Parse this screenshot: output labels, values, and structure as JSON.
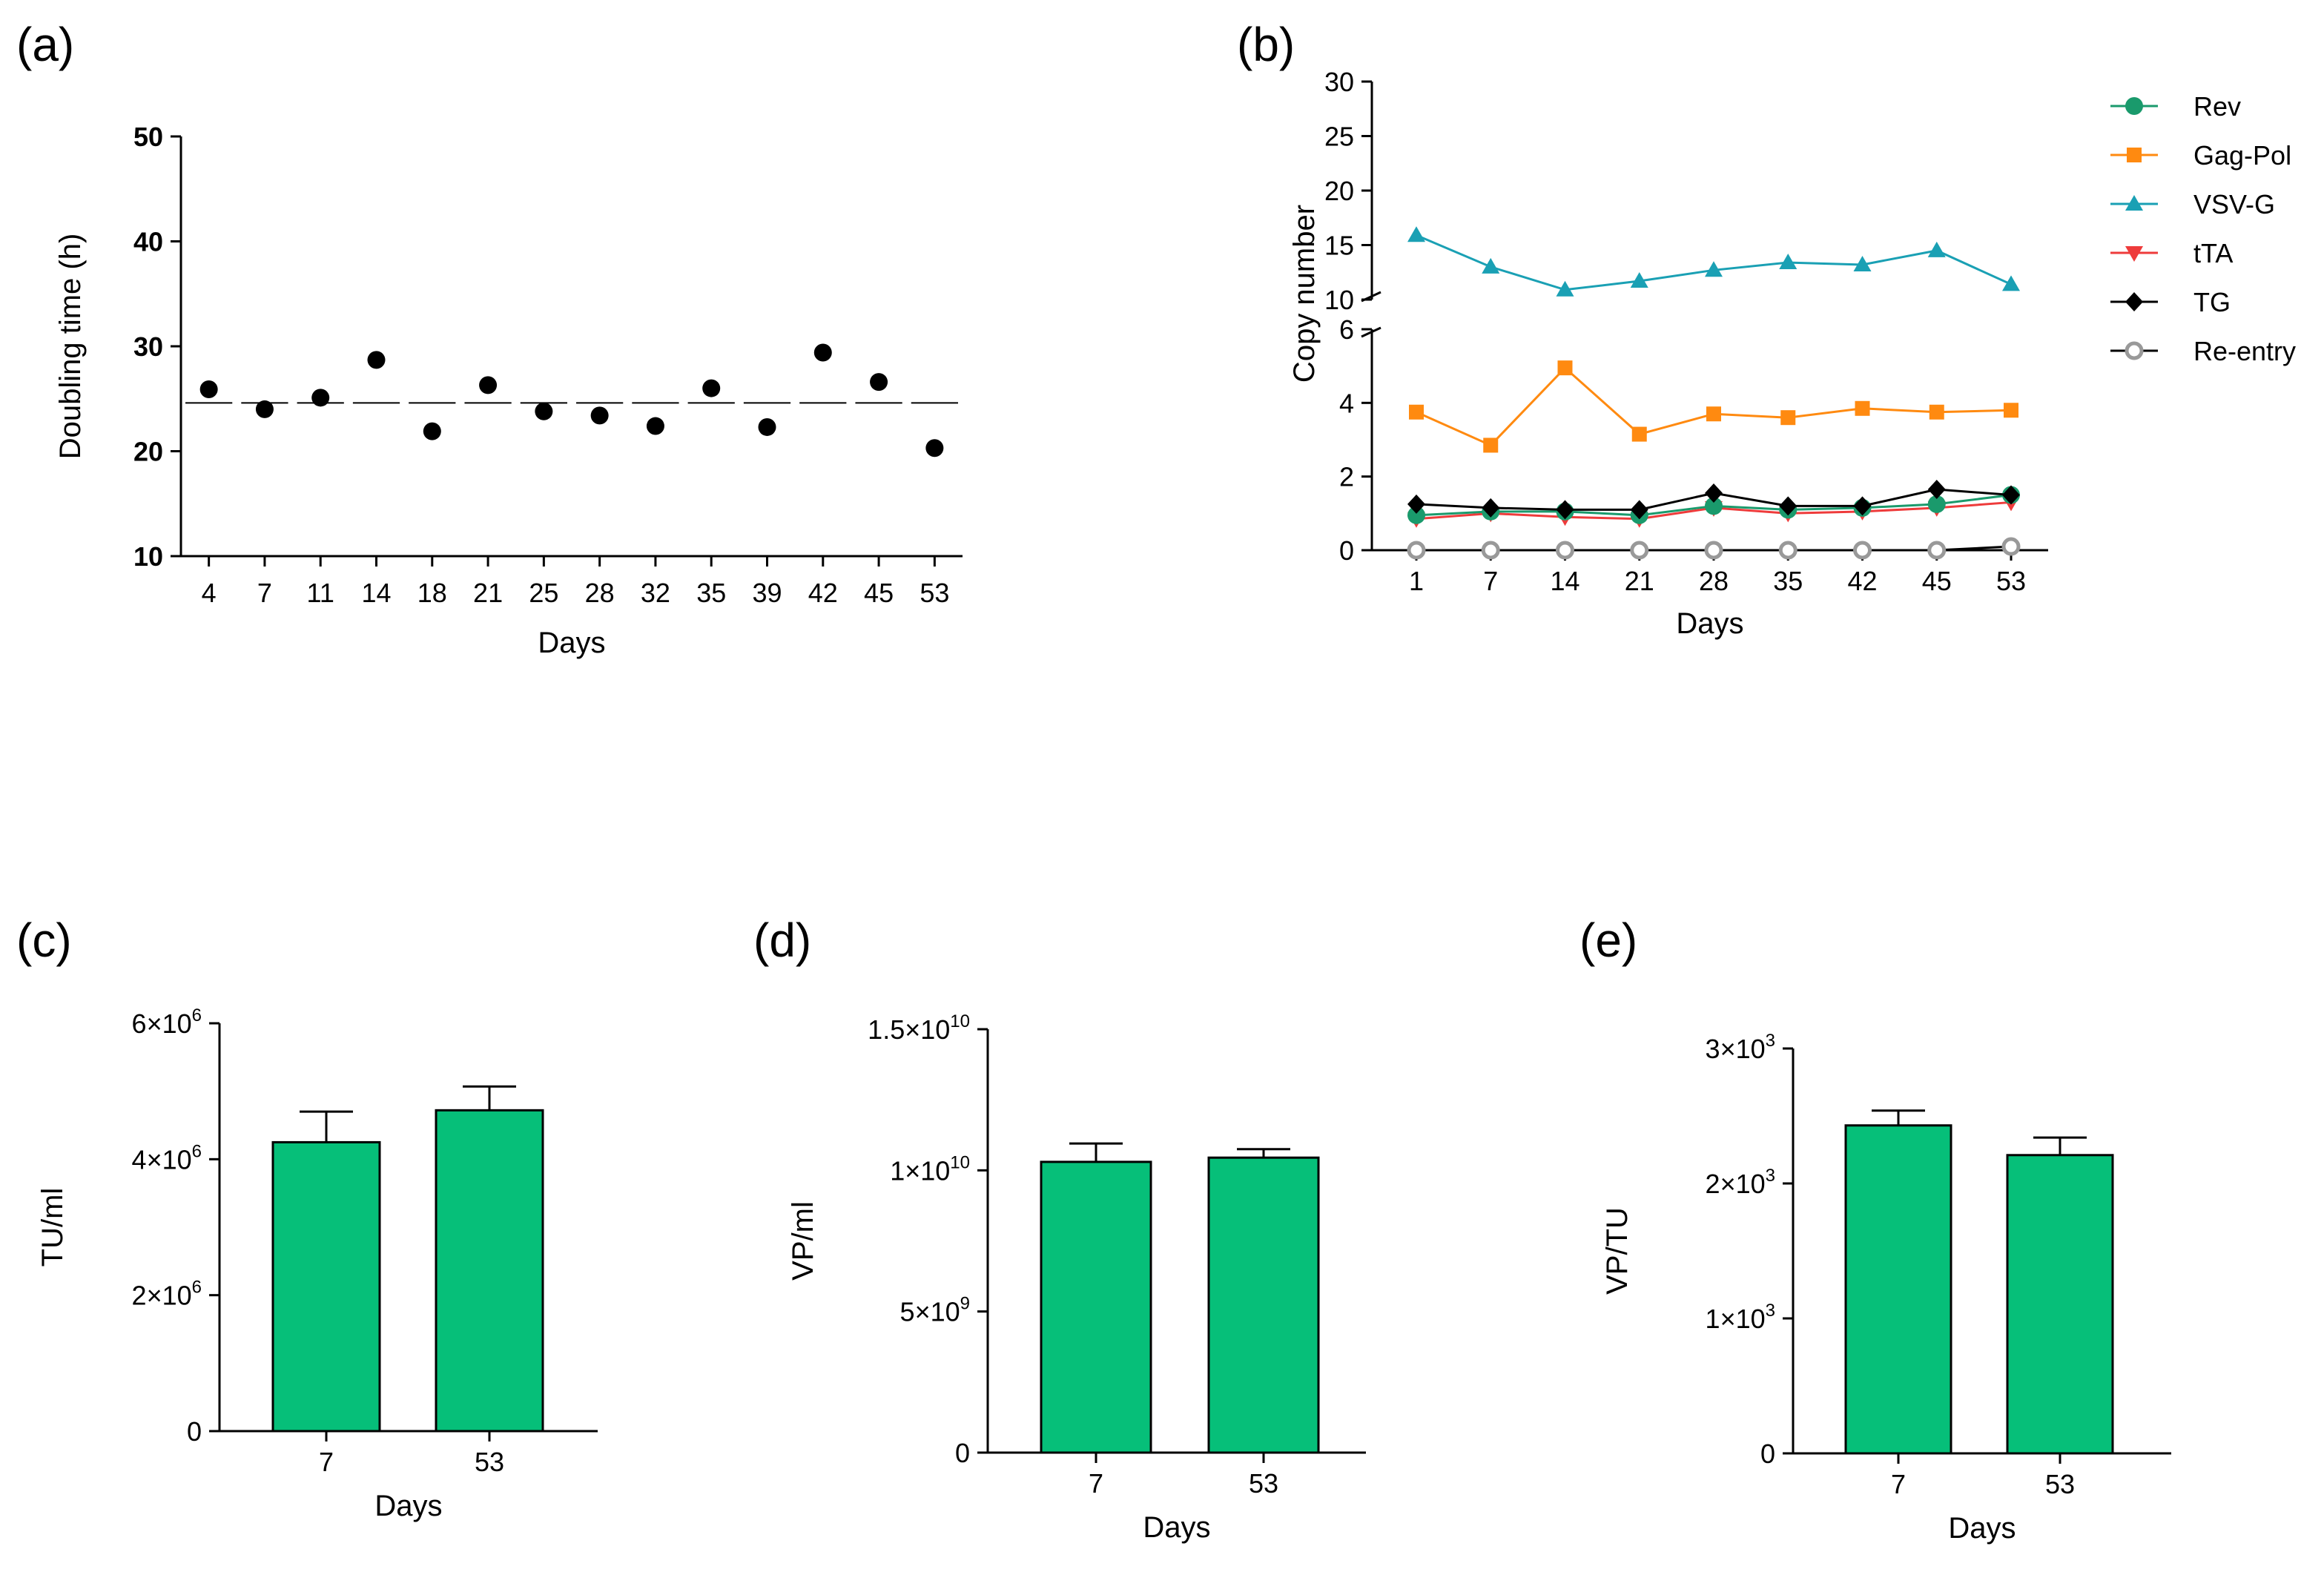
{
  "chart_data": [
    {
      "id": "a",
      "type": "scatter",
      "panel_label": "(a)",
      "title": "",
      "xlabel": "Days",
      "ylabel": "Doubling time (h)",
      "categories": [
        "4",
        "7",
        "11",
        "14",
        "18",
        "21",
        "25",
        "28",
        "32",
        "35",
        "39",
        "42",
        "45",
        "53"
      ],
      "values": [
        25.9,
        24.0,
        25.1,
        28.7,
        21.9,
        26.3,
        23.8,
        23.4,
        22.4,
        26.0,
        22.3,
        29.4,
        26.6,
        20.3
      ],
      "mean_line": 24.6,
      "ylim": [
        10,
        50
      ],
      "yticks": [
        "10",
        "20",
        "30",
        "40",
        "50"
      ],
      "point_color": "#000000"
    },
    {
      "id": "b",
      "type": "line",
      "panel_label": "(b)",
      "title": "",
      "xlabel": "Days",
      "ylabel": "Copy number",
      "categories": [
        "1",
        "7",
        "14",
        "21",
        "28",
        "35",
        "42",
        "45",
        "53"
      ],
      "axis_break": {
        "lower_range": [
          0,
          6
        ],
        "upper_range": [
          10,
          30
        ]
      },
      "yticks_lower": [
        "0",
        "2",
        "4",
        "6"
      ],
      "yticks_upper": [
        "10",
        "15",
        "20",
        "25",
        "30"
      ],
      "legend_position": "right",
      "series": [
        {
          "name": "Rev",
          "color": "#1a9a6c",
          "marker": "circle",
          "values": [
            0.95,
            1.05,
            1.05,
            0.95,
            1.2,
            1.1,
            1.15,
            1.25,
            1.5
          ]
        },
        {
          "name": "Gag-Pol",
          "color": "#ff8a10",
          "marker": "square",
          "values": [
            3.75,
            2.85,
            4.95,
            3.15,
            3.7,
            3.6,
            3.85,
            3.75,
            3.8
          ]
        },
        {
          "name": "VSV-G",
          "color": "#1aa0b4",
          "marker": "triangle-up",
          "values": [
            15.9,
            13.0,
            10.9,
            11.7,
            12.7,
            13.4,
            13.2,
            14.5,
            11.4
          ]
        },
        {
          "name": "tTA",
          "color": "#ee3b3b",
          "marker": "triangle-down",
          "values": [
            0.85,
            1.0,
            0.9,
            0.85,
            1.15,
            1.0,
            1.05,
            1.15,
            1.3
          ]
        },
        {
          "name": "TG",
          "color": "#000000",
          "marker": "diamond",
          "values": [
            1.25,
            1.15,
            1.1,
            1.1,
            1.55,
            1.2,
            1.2,
            1.65,
            1.5
          ]
        },
        {
          "name": "Re-entry",
          "color": "#999999",
          "marker": "open-circle",
          "values": [
            0,
            0,
            0,
            0,
            0,
            0,
            0,
            0,
            0.1
          ]
        }
      ]
    },
    {
      "id": "c",
      "type": "bar",
      "panel_label": "(c)",
      "xlabel": "Days",
      "ylabel": "TU/ml",
      "categories": [
        "7",
        "53"
      ],
      "values": [
        4250000,
        4720000
      ],
      "errors": [
        450000,
        350000
      ],
      "ylim": [
        0,
        6000000
      ],
      "yticks": [
        {
          "v": 0,
          "m": "0",
          "e": ""
        },
        {
          "v": 2000000,
          "m": "2×10",
          "e": "6"
        },
        {
          "v": 4000000,
          "m": "4×10",
          "e": "6"
        },
        {
          "v": 6000000,
          "m": "6×10",
          "e": "6"
        }
      ],
      "bar_color": "#06bf79"
    },
    {
      "id": "d",
      "type": "bar",
      "panel_label": "(d)",
      "xlabel": "Days",
      "ylabel": "VP/ml",
      "categories": [
        "7",
        "53"
      ],
      "values": [
        10300000000,
        10450000000
      ],
      "errors": [
        650000000,
        300000000
      ],
      "ylim": [
        0,
        15000000000
      ],
      "yticks": [
        {
          "v": 0,
          "m": "0",
          "e": ""
        },
        {
          "v": 5000000000,
          "m": "5×10",
          "e": "9"
        },
        {
          "v": 10000000000,
          "m": "1×10",
          "e": "10"
        },
        {
          "v": 15000000000,
          "m": "1.5×10",
          "e": "10"
        }
      ],
      "bar_color": "#06bf79"
    },
    {
      "id": "e",
      "type": "bar",
      "panel_label": "(e)",
      "xlabel": "Days",
      "ylabel": "VP/TU",
      "categories": [
        "7",
        "53"
      ],
      "values": [
        2430,
        2210
      ],
      "errors": [
        110,
        130
      ],
      "ylim": [
        0,
        3000
      ],
      "yticks": [
        {
          "v": 0,
          "m": "0",
          "e": ""
        },
        {
          "v": 1000,
          "m": "1×10",
          "e": "3"
        },
        {
          "v": 2000,
          "m": "2×10",
          "e": "3"
        },
        {
          "v": 3000,
          "m": "3×10",
          "e": "3"
        }
      ],
      "bar_color": "#06bf79"
    }
  ]
}
